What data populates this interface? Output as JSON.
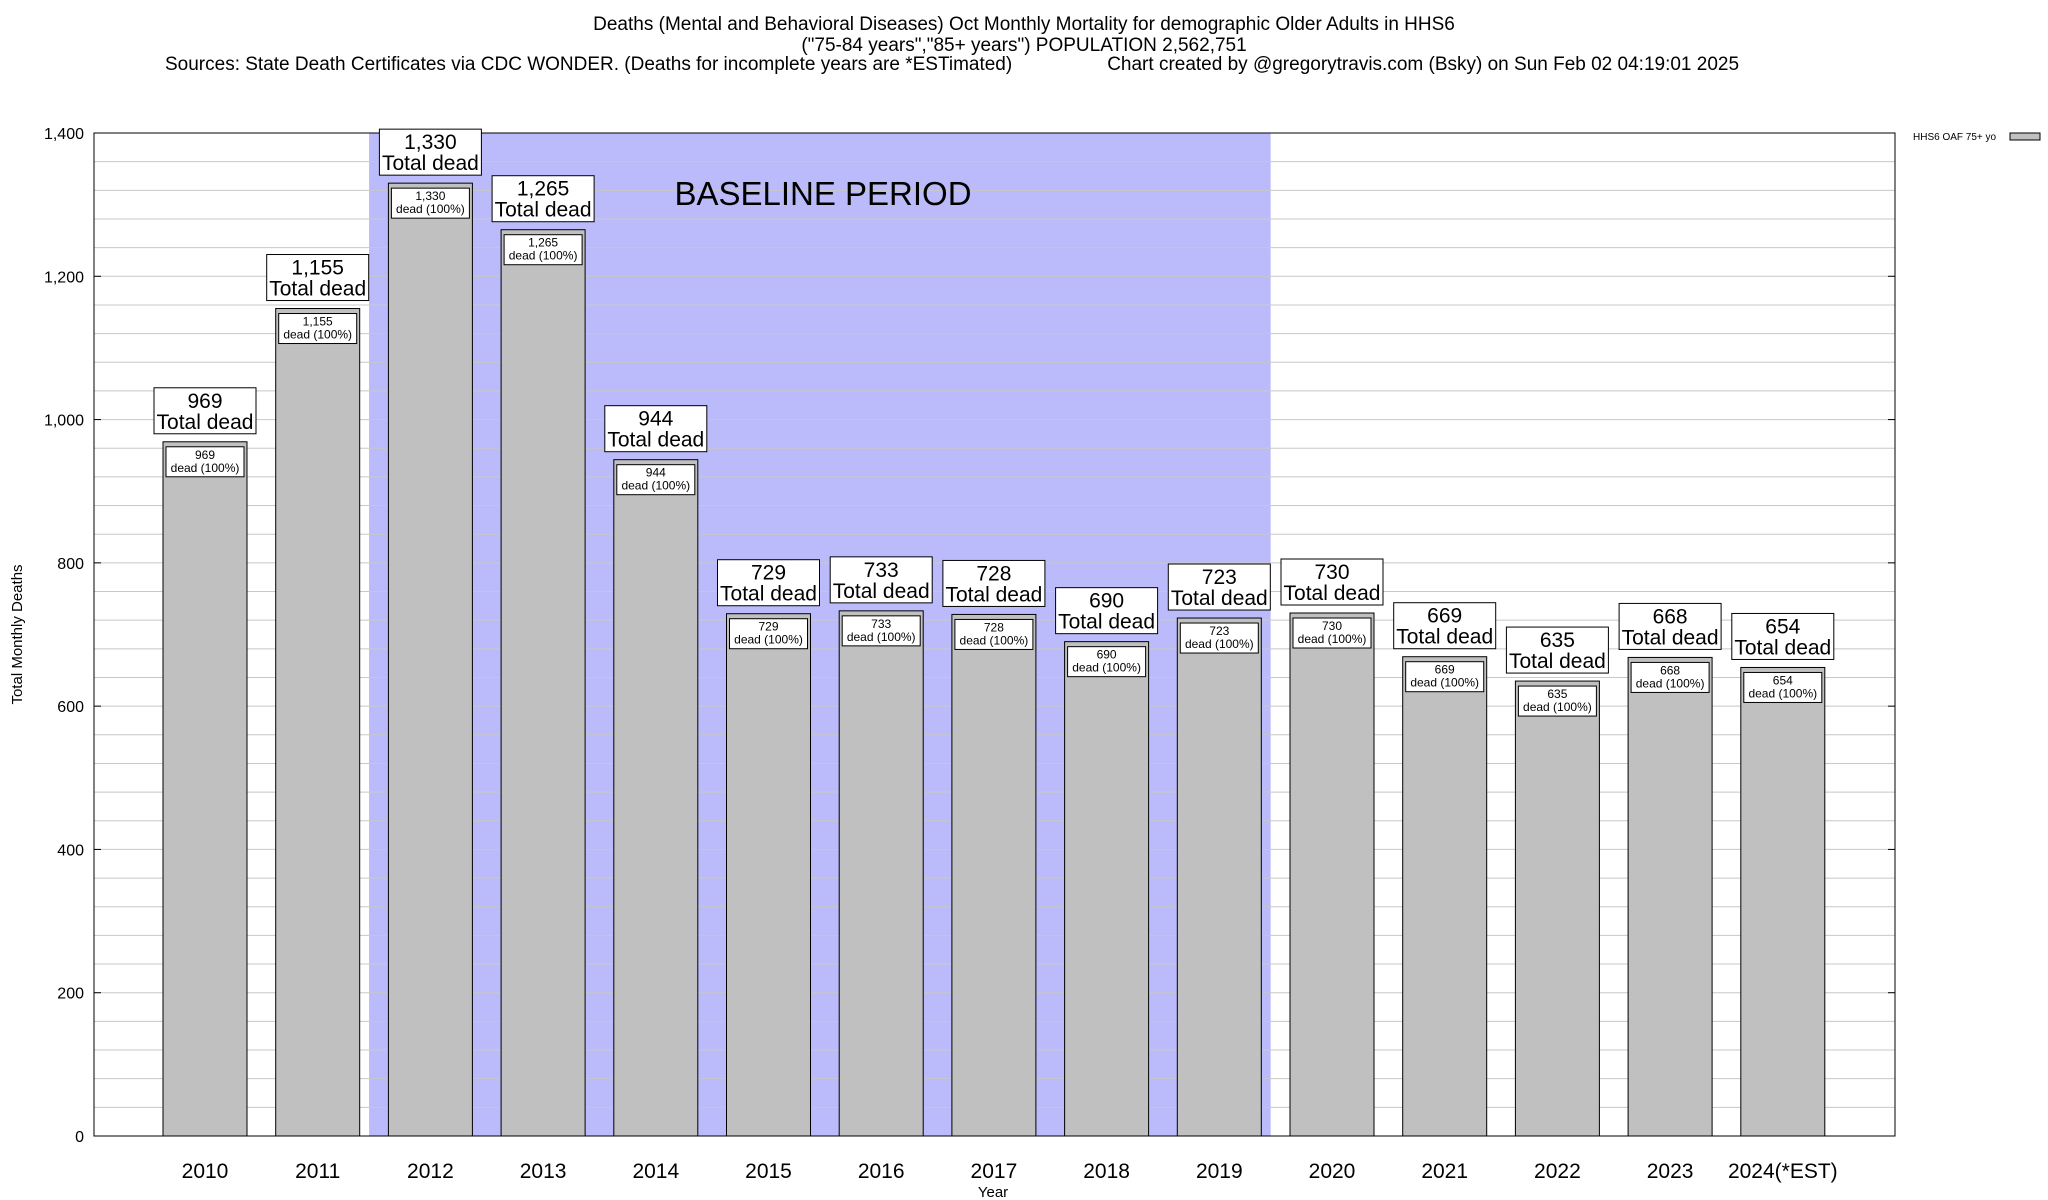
{
  "header": {
    "title_line1": "Deaths (Mental and Behavioral Diseases) Oct Monthly Mortality for demographic Older Adults in HHS6",
    "title_line2": "(\"75-84 years\",\"85+ years\") POPULATION 2,562,751",
    "sources": "Sources: State Death Certificates via CDC WONDER. (Deaths for incomplete years are *ESTimated)",
    "credit": "Chart created by @gregorytravis.com (Bsky) on Sun Feb 02 04:19:01 2025"
  },
  "colors": {
    "bar": "#c0c0c0",
    "baseline": "#bbbbfb",
    "grid": "#c8c8c8"
  },
  "chart_data": {
    "type": "bar",
    "categories": [
      "2010",
      "2011",
      "2012",
      "2013",
      "2014",
      "2015",
      "2016",
      "2017",
      "2018",
      "2019",
      "2020",
      "2021",
      "2022",
      "2023",
      "2024(*EST)"
    ],
    "series": [
      {
        "name": "HHS6 OAF 75+ yo",
        "values": [
          969,
          1155,
          1330,
          1265,
          944,
          729,
          733,
          728,
          690,
          723,
          730,
          669,
          635,
          668,
          654
        ]
      }
    ],
    "value_labels": [
      "969",
      "1,155",
      "1,330",
      "1,265",
      "944",
      "729",
      "733",
      "728",
      "690",
      "723",
      "730",
      "669",
      "635",
      "668",
      "654"
    ],
    "total_suffix": "Total dead",
    "inner_suffix": "dead (100%)",
    "baseline": {
      "label": "BASELINE PERIOD",
      "start": "2012",
      "end": "2019"
    },
    "xlabel": "Year",
    "ylabel": "Total Monthly Deaths",
    "ylim": [
      0,
      1400
    ],
    "yticks": [
      0,
      200,
      400,
      600,
      800,
      1000,
      1200,
      1400
    ],
    "ytick_labels": [
      "0",
      "200",
      "400",
      "600",
      "800",
      "1,000",
      "1,200",
      "1,400"
    ],
    "minor_step": 40,
    "legend": "HHS6 OAF 75+ yo"
  }
}
